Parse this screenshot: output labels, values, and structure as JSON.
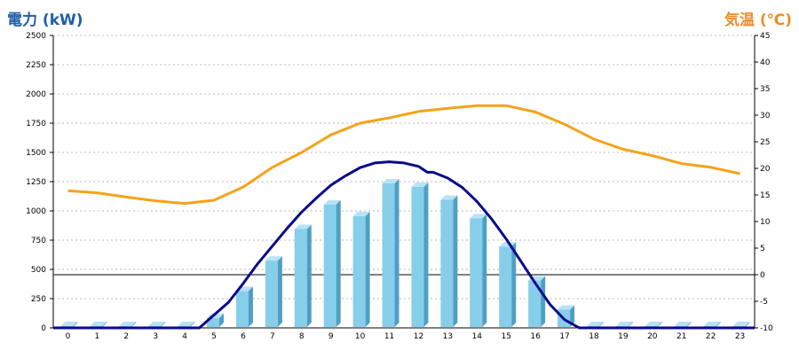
{
  "chart_data": {
    "type": "bar",
    "y_left_label": "電力 (kW)",
    "y_right_label": "気温 (℃)",
    "y_left_ticks": [
      0,
      250,
      500,
      750,
      1000,
      1250,
      1500,
      1750,
      2000,
      2250,
      2500
    ],
    "y_right_ticks": [
      -10,
      -5,
      0,
      5,
      10,
      15,
      20,
      25,
      30,
      35,
      40,
      45
    ],
    "y_left_range": [
      0,
      2500
    ],
    "y_right_range": [
      -10,
      45
    ],
    "grid": true,
    "legend": "none",
    "colors": {
      "bar": "#87ceeb",
      "bar_side": "#4f9fc2",
      "bar_top": "#b8e2f5",
      "power_line": "#0a0a8c",
      "temp_line": "#f5a31a",
      "zero_line": "#000000",
      "grid": "#bbbbbb",
      "left_title": "#1f5fa8",
      "right_title": "#f08c28"
    },
    "categories": [
      "0",
      "1",
      "2",
      "3",
      "4",
      "5",
      "6",
      "7",
      "8",
      "9",
      "10",
      "11",
      "12",
      "13",
      "14",
      "15",
      "16",
      "17",
      "18",
      "19",
      "20",
      "21",
      "22",
      "23"
    ],
    "bar_values": [
      0,
      0,
      0,
      0,
      0,
      70,
      300,
      560,
      830,
      1040,
      940,
      1220,
      1190,
      1080,
      920,
      680,
      390,
      140,
      0,
      0,
      0,
      0,
      0,
      0
    ],
    "power_line": {
      "x": [
        4.5,
        5,
        5.5,
        6,
        6.5,
        7,
        7.5,
        8,
        8.5,
        9,
        9.5,
        10,
        10.5,
        11,
        11.5,
        12,
        12.3,
        12.5,
        13,
        13.5,
        14,
        14.5,
        15,
        15.5,
        16,
        16.5,
        17,
        17.5
      ],
      "values": [
        0,
        110,
        220,
        380,
        550,
        700,
        850,
        990,
        1110,
        1220,
        1300,
        1370,
        1410,
        1420,
        1410,
        1380,
        1330,
        1330,
        1280,
        1200,
        1080,
        930,
        760,
        570,
        380,
        200,
        70,
        0
      ]
    },
    "temperature_line": {
      "x": [
        0,
        1,
        2,
        3,
        4,
        5,
        6,
        7,
        8,
        9,
        10,
        11,
        12,
        13,
        14,
        15,
        16,
        17,
        18,
        19,
        20,
        21,
        22,
        23
      ],
      "values": [
        15.8,
        15.4,
        14.6,
        13.9,
        13.4,
        14.0,
        16.5,
        20.2,
        23.0,
        26.3,
        28.5,
        29.5,
        30.7,
        31.3,
        31.8,
        31.8,
        30.6,
        28.3,
        25.5,
        23.6,
        22.4,
        20.9,
        20.2,
        19.0
      ]
    }
  }
}
